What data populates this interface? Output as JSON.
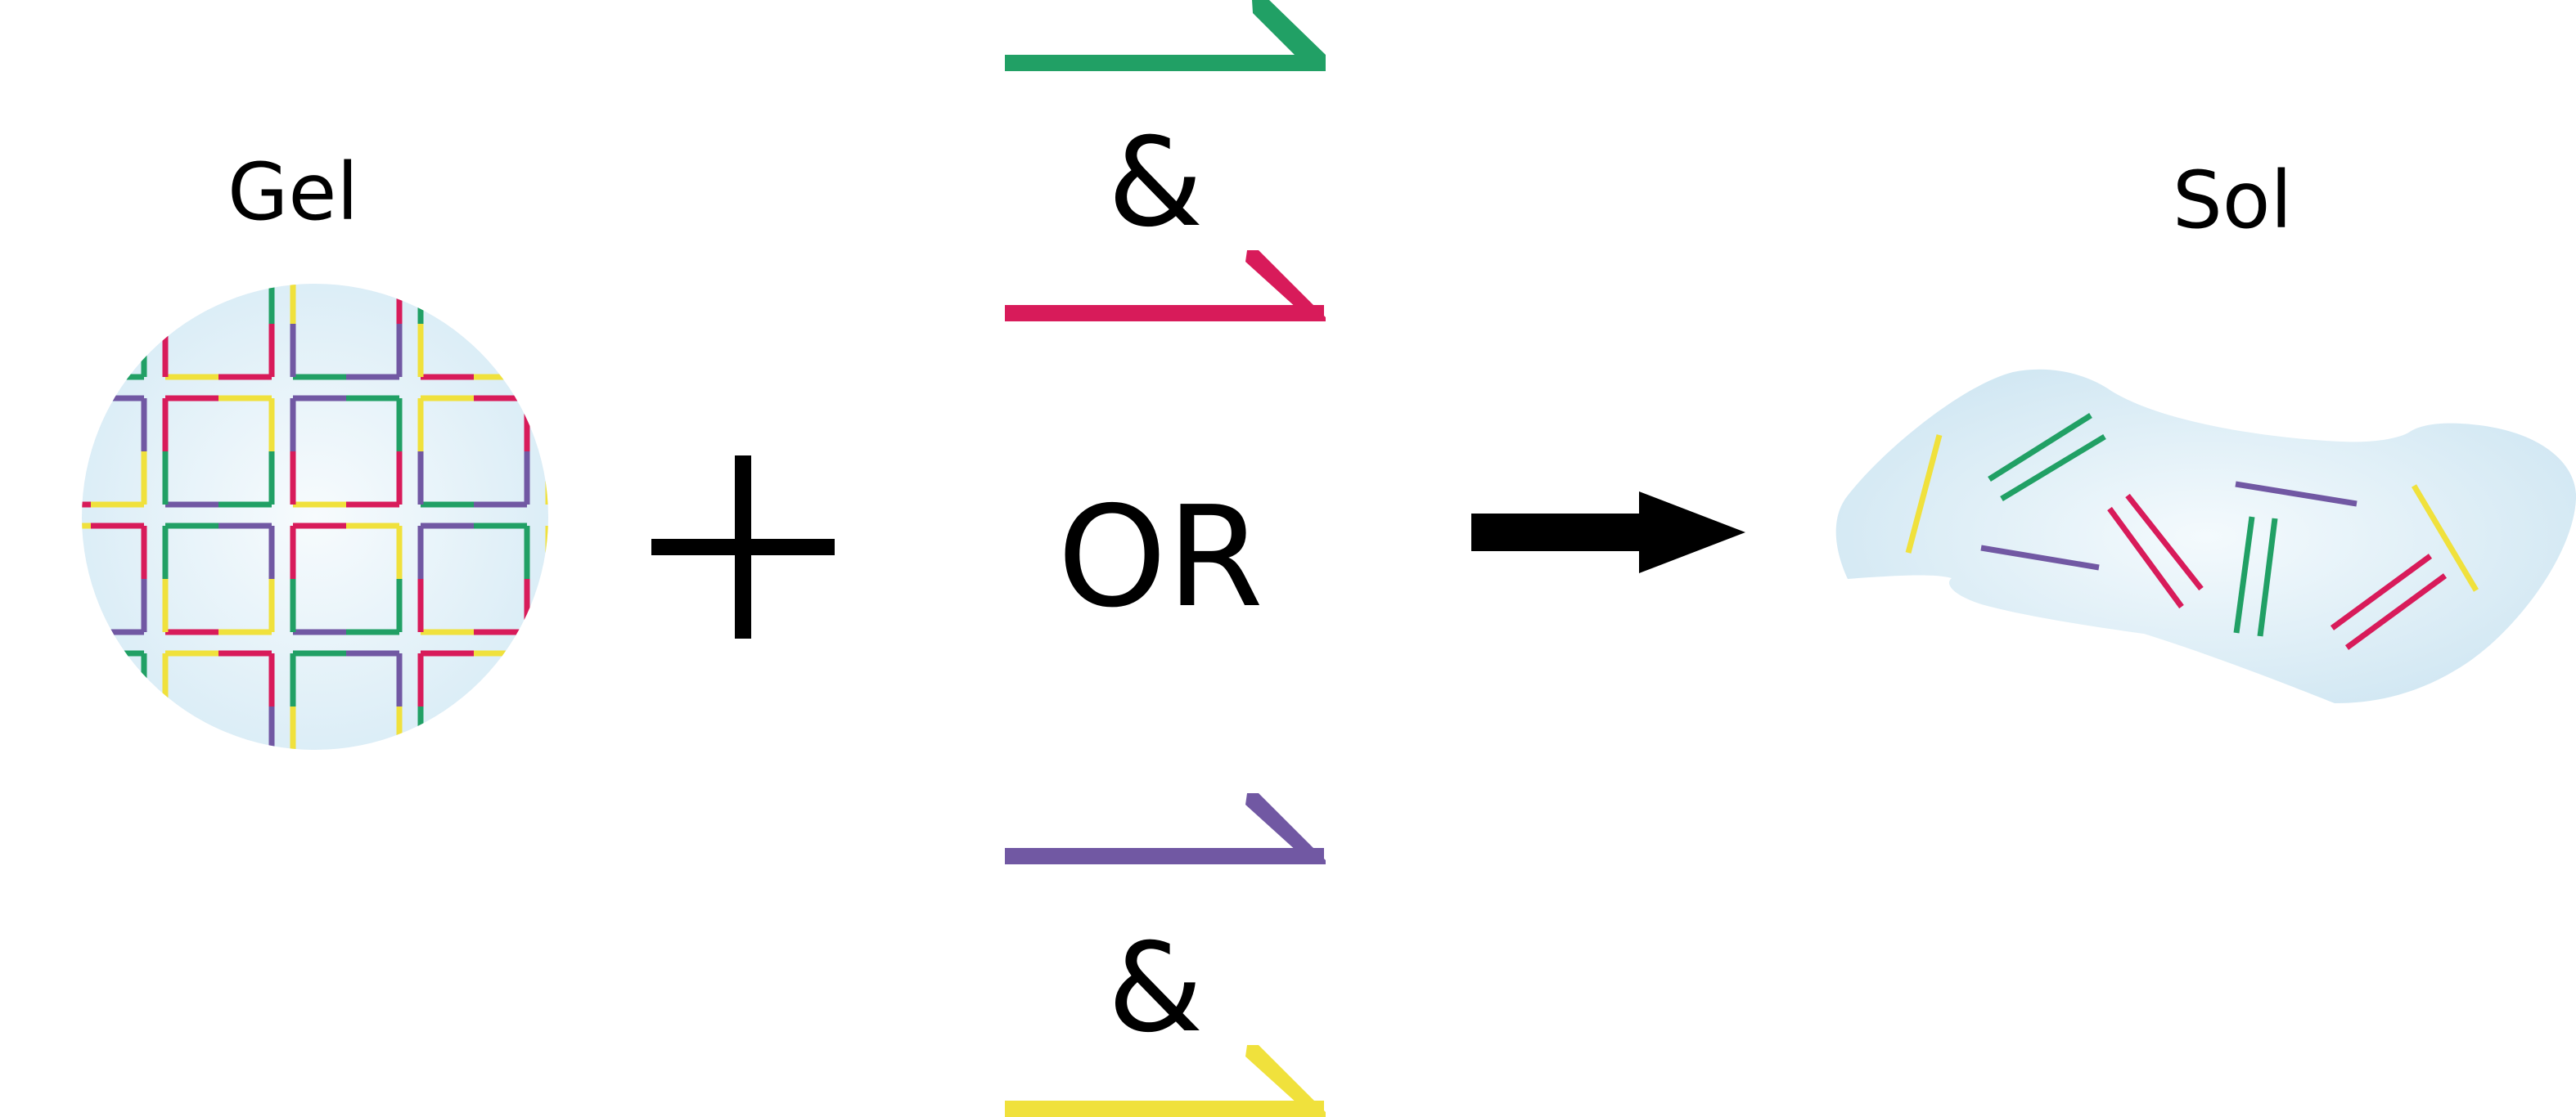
{
  "labels": {
    "gel": "Gel",
    "sol": "Sol",
    "and_top": "&",
    "or": "OR",
    "and_bottom": "&"
  },
  "colors": {
    "green": "#21a065",
    "magenta": "#d81b5a",
    "purple": "#7158a3",
    "yellow": "#f0e13c",
    "gel_fill": "#e3f1f8",
    "gel_center": "#f7fbfd",
    "black": "#000000"
  },
  "icons": {
    "plus": "plus-icon",
    "arrow": "right-arrow-icon",
    "strand": "hooked-strand-icon"
  },
  "strands": [
    {
      "id": "strand-green",
      "color": "green"
    },
    {
      "id": "strand-magenta",
      "color": "magenta"
    },
    {
      "id": "strand-purple",
      "color": "purple"
    },
    {
      "id": "strand-yellow",
      "color": "yellow"
    }
  ]
}
